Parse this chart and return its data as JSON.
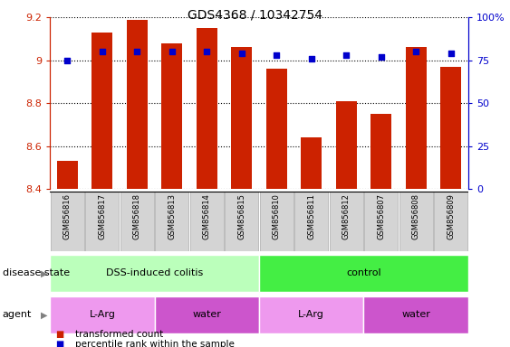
{
  "title": "GDS4368 / 10342754",
  "samples": [
    "GSM856816",
    "GSM856817",
    "GSM856818",
    "GSM856813",
    "GSM856814",
    "GSM856815",
    "GSM856810",
    "GSM856811",
    "GSM856812",
    "GSM856807",
    "GSM856808",
    "GSM856809"
  ],
  "bar_values": [
    8.53,
    9.13,
    9.19,
    9.08,
    9.15,
    9.06,
    8.96,
    8.64,
    8.81,
    8.75,
    9.06,
    8.97
  ],
  "dot_values": [
    75,
    80,
    80,
    80,
    80,
    79,
    78,
    76,
    78,
    77,
    80,
    79
  ],
  "bar_color": "#cc2200",
  "dot_color": "#0000cc",
  "ylim_left": [
    8.4,
    9.2
  ],
  "ylim_right": [
    0,
    100
  ],
  "yticks_left": [
    8.4,
    8.6,
    8.8,
    9.0,
    9.2
  ],
  "ytick_labels_left": [
    "8.4",
    "8.6",
    "8.8",
    "9",
    "9.2"
  ],
  "yticks_right": [
    0,
    25,
    50,
    75,
    100
  ],
  "ytick_labels_right": [
    "0",
    "25",
    "50",
    "75",
    "100%"
  ],
  "disease_state_groups": [
    {
      "label": "DSS-induced colitis",
      "start": 0,
      "end": 6,
      "color": "#bbffbb"
    },
    {
      "label": "control",
      "start": 6,
      "end": 12,
      "color": "#44ee44"
    }
  ],
  "agent_groups": [
    {
      "label": "L-Arg",
      "start": 0,
      "end": 3,
      "color": "#ee99ee"
    },
    {
      "label": "water",
      "start": 3,
      "end": 6,
      "color": "#cc55cc"
    },
    {
      "label": "L-Arg",
      "start": 6,
      "end": 9,
      "color": "#ee99ee"
    },
    {
      "label": "water",
      "start": 9,
      "end": 12,
      "color": "#cc55cc"
    }
  ],
  "legend_bar_label": "transformed count",
  "legend_dot_label": "percentile rank within the sample",
  "disease_state_label": "disease state",
  "agent_label": "agent",
  "label_box_color": "#d4d4d4",
  "label_box_edge": "#aaaaaa",
  "background_color": "#ffffff",
  "tick_color_left": "#cc2200",
  "tick_color_right": "#0000cc"
}
